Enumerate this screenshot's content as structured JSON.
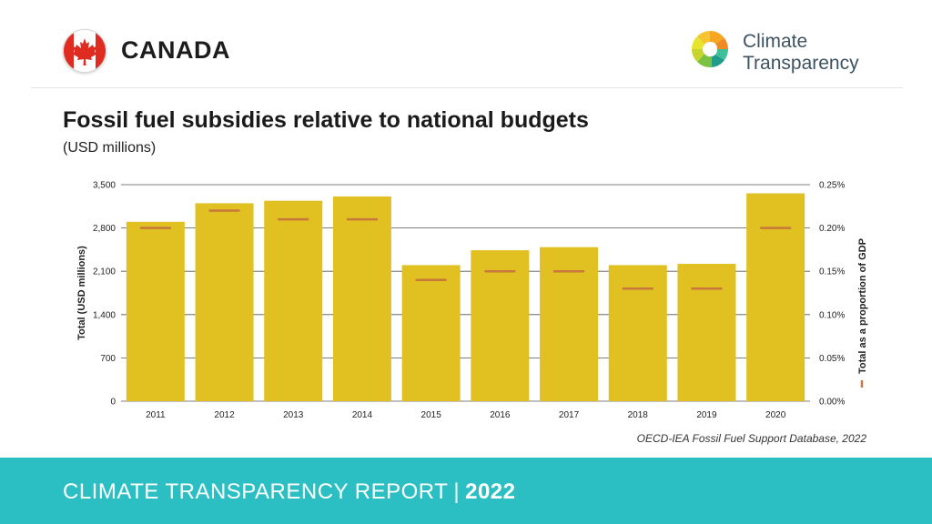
{
  "header": {
    "country": "CANADA",
    "brand_line1": "Climate",
    "brand_line2": "Transparency",
    "flag_icon": "canada-maple-leaf-flag",
    "brand_icon": "climate-transparency-logo"
  },
  "chart_title": "Fossil fuel subsidies relative to national budgets",
  "chart_subtitle": "(USD millions)",
  "source": "OECD-IEA Fossil Fuel Support Database, 2022",
  "footer": {
    "label": "CLIMATE TRANSPARENCY REPORT",
    "separator": "|",
    "year": "2022"
  },
  "colors": {
    "bar": "#e1c121",
    "gdp_marker": "#c8783a",
    "footer_bg": "#2bbfc4",
    "gridline": "#555555"
  },
  "chart_data": {
    "type": "bar",
    "categories": [
      "2011",
      "2012",
      "2013",
      "2014",
      "2015",
      "2016",
      "2017",
      "2018",
      "2019",
      "2020"
    ],
    "series": [
      {
        "name": "Total (USD millions)",
        "axis": "left",
        "values": [
          2900,
          3200,
          3240,
          3310,
          2200,
          2440,
          2490,
          2200,
          2220,
          3360
        ]
      },
      {
        "name": "Total as a proportion of GDP",
        "axis": "right",
        "style": "marker",
        "values": [
          0.2,
          0.22,
          0.21,
          0.21,
          0.14,
          0.15,
          0.15,
          0.13,
          0.13,
          0.2
        ]
      }
    ],
    "ylabel": "Total (USD millions)",
    "y2label": "Total as a proportion of GDP",
    "ylim": [
      0,
      3500
    ],
    "y2lim": [
      0,
      0.25
    ],
    "yticks": [
      0,
      700,
      1400,
      2100,
      2800,
      3500
    ],
    "ytick_labels": [
      "0",
      "700",
      "1,400",
      "2,100",
      "2,800",
      "3,500"
    ],
    "y2ticks": [
      0,
      0.05,
      0.1,
      0.15,
      0.2,
      0.25
    ],
    "y2tick_labels": [
      "0.00%",
      "0.05%",
      "0.10%",
      "0.15%",
      "0.20%",
      "0.25%"
    ],
    "grid": true,
    "legend_position": "right"
  }
}
